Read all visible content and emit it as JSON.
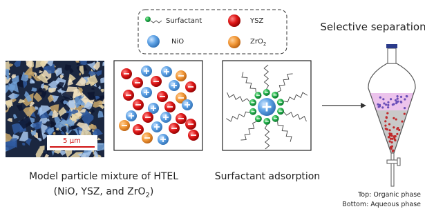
{
  "legend": {
    "items": [
      {
        "label": "Surfactant"
      },
      {
        "label": "YSZ"
      },
      {
        "label": "NiO"
      },
      {
        "label": {
          "text": "ZrO",
          "subscript": "2"
        }
      }
    ]
  },
  "scale_bar": "5 μm",
  "mixture_caption": {
    "line1": "Model particle mixture of HTEL",
    "line2": [
      "(NiO, YSZ, and ZrO",
      "2",
      ")"
    ]
  },
  "adsorption_caption": "Surfactant adsorption",
  "separation_title": "Selective separation",
  "phases": [
    "Top: Organic phase",
    "Bottom: Aqueous phase"
  ]
}
